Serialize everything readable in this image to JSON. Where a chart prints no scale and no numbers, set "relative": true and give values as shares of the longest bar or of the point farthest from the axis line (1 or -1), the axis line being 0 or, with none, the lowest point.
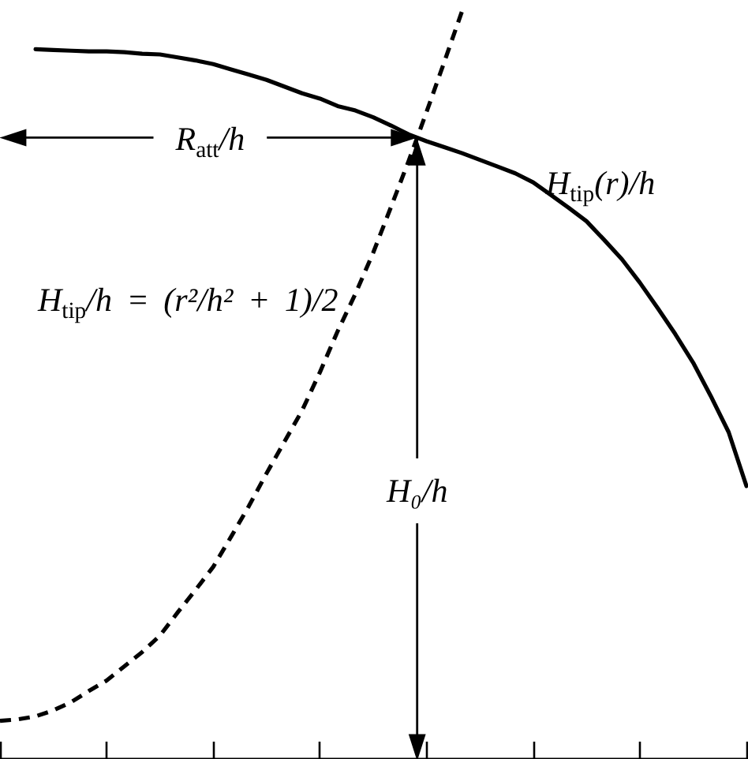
{
  "chart_data": {
    "type": "line",
    "relative": true,
    "marker": "none",
    "categories": [
      null,
      null,
      null,
      null,
      null,
      null,
      null,
      null,
      null,
      null,
      null,
      null,
      null,
      null,
      null,
      null,
      null,
      null,
      null,
      null,
      null,
      null,
      null,
      null,
      null,
      null,
      null,
      null,
      null,
      null,
      null,
      null,
      null,
      null,
      null,
      null,
      null,
      null,
      null,
      null,
      null,
      null,
      null
    ],
    "series": [
      {
        "name": "H$_{tip}$(r)/h",
        "color": "#000000",
        "line_style": "solid",
        "values": [
          null,
          null,
          0.949,
          0.948,
          0.947,
          0.946,
          0.946,
          0.945,
          0.943,
          0.942,
          0.938,
          0.934,
          0.929,
          0.922,
          0.915,
          0.908,
          0.899,
          0.89,
          0.883,
          0.873,
          0.867,
          0.858,
          0.847,
          0.835,
          0.826,
          0.818,
          0.81,
          0.801,
          0.792,
          0.783,
          0.771,
          0.754,
          0.737,
          0.719,
          0.694,
          0.668,
          0.637,
          0.603,
          0.568,
          0.53,
          0.485,
          0.437,
          0.365
        ]
      },
      {
        "name": "H$_{tip}$/h = (r²/h² + 1)/2",
        "color": "#000000",
        "line_style": "dashed",
        "values": [
          0.051,
          0.053,
          0.057,
          0.065,
          0.076,
          0.091,
          0.105,
          0.124,
          0.143,
          0.165,
          0.196,
          0.226,
          0.257,
          0.297,
          0.338,
          0.382,
          0.424,
          0.466,
          0.517,
          0.572,
          0.622,
          0.677,
          0.738,
          0.8,
          0.865,
          0.932,
          1.0,
          null,
          null,
          null,
          null,
          null,
          null,
          null,
          null,
          null,
          null,
          null,
          null,
          null,
          null,
          null,
          null
        ]
      }
    ],
    "annotations": [
      "R$_{att}$/h",
      "H₀/h"
    ]
  }
}
